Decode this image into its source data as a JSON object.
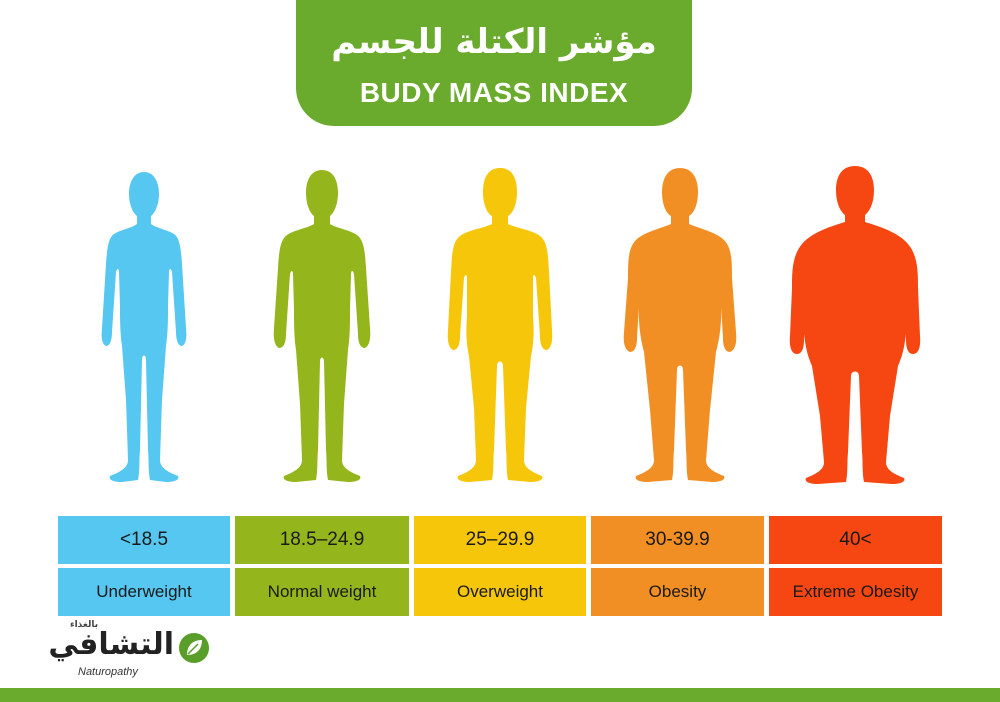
{
  "title": {
    "arabic": "مؤشر الكتلة للجسم",
    "english": "BUDY MASS INDEX"
  },
  "colors": {
    "banner_green": "#6aaa2c",
    "underweight": "#55c7f0",
    "normal": "#94b61c",
    "overweight": "#f6c60b",
    "obesity": "#f28f24",
    "extreme": "#f64611"
  },
  "categories": [
    {
      "range": "<18.5",
      "label": "Underweight",
      "color": "#55c7f0"
    },
    {
      "range": "18.5–24.9",
      "label": "Normal weight",
      "color": "#94b61c"
    },
    {
      "range": "25–29.9",
      "label": "Overweight",
      "color": "#f6c60b"
    },
    {
      "range": "30-39.9",
      "label": "Obesity",
      "color": "#f28f24"
    },
    {
      "range": "40<",
      "label": "Extreme Obesity",
      "color": "#f64611"
    }
  ],
  "logo": {
    "arabic": "التشافي",
    "arabic_small": "بالغذاء",
    "english": "Naturopathy"
  }
}
